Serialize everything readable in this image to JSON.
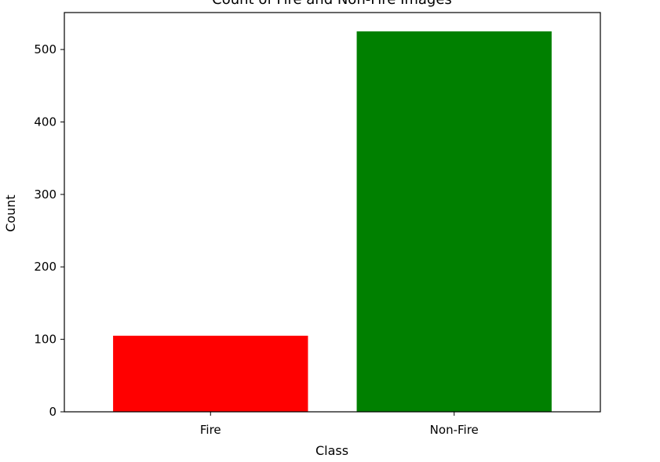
{
  "chart_data": {
    "type": "bar",
    "title": "Count of Fire and Non-Fire Images",
    "xlabel": "Class",
    "ylabel": "Count",
    "categories": [
      "Fire",
      "Non-Fire"
    ],
    "values": [
      105,
      525
    ],
    "colors": [
      "#ff0000",
      "#008000"
    ],
    "ylim": [
      0,
      551
    ],
    "yticks": [
      0,
      100,
      200,
      300,
      400,
      500
    ],
    "grid": false,
    "legend": false
  }
}
